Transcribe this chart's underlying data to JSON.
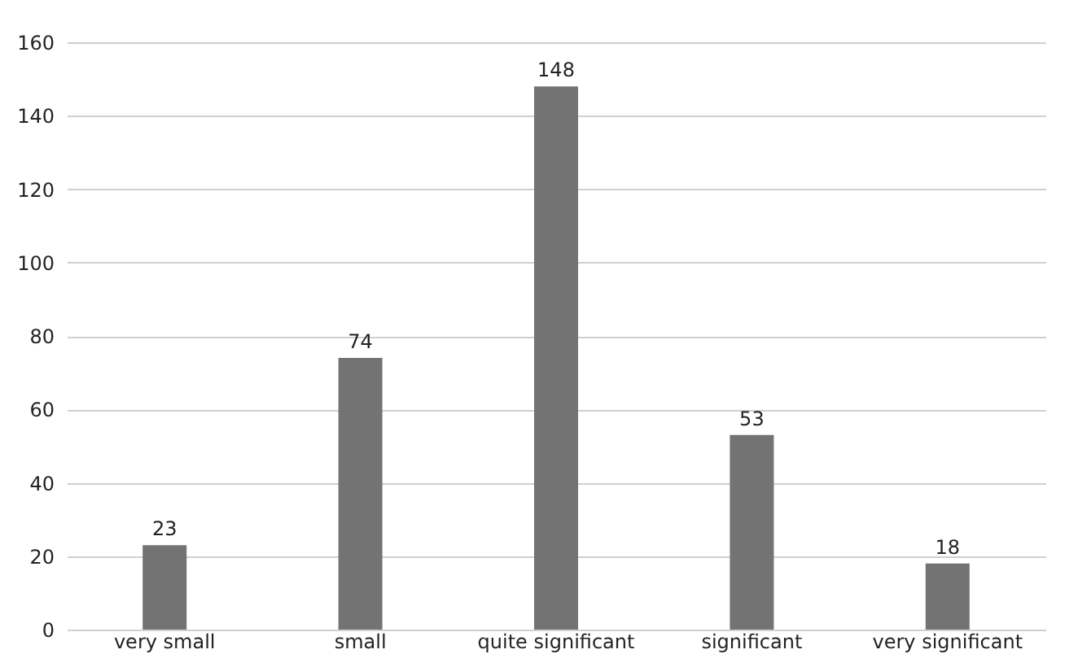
{
  "chart_data": {
    "type": "bar",
    "categories": [
      "very small",
      "small",
      "quite significant",
      "significant",
      "very significant"
    ],
    "values": [
      23,
      74,
      148,
      53,
      18
    ],
    "color": "#737373",
    "ylim": [
      0,
      160
    ],
    "yticks": [
      0,
      20,
      40,
      60,
      80,
      100,
      120,
      140,
      160
    ],
    "grid": "y",
    "data_labels": true
  }
}
